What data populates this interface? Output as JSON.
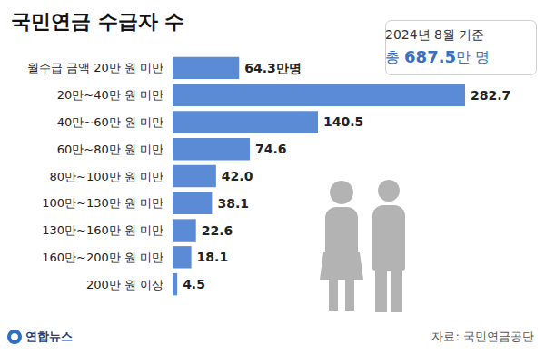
{
  "chart_data": {
    "type": "bar",
    "title": "국민연금 수급자 수",
    "subtitle": "2024년 8월 기준",
    "annotations": [
      "총 687.5만 명"
    ],
    "source": "자료: 국민연금공단",
    "credit": "연합뉴스",
    "orientation": "horizontal",
    "categories": [
      "월수급 금액 20만 원 미만",
      "20만~40만 원 미만",
      "40만~60만 원 미만",
      "60만~80만 원 미만",
      "80만~100만 원 미만",
      "100만~130만 원 미만",
      "130만~160만 원 미만",
      "160만~200만 원 미만",
      "200만 원 이상"
    ],
    "values": [
      64.3,
      282.7,
      140.5,
      74.6,
      42.0,
      38.1,
      22.6,
      18.1,
      4.5
    ],
    "value_labels": [
      "64.3만명",
      "282.7",
      "140.5",
      "74.6",
      "42.0",
      "38.1",
      "22.6",
      "18.1",
      "4.5"
    ],
    "color": "#5b8bd5",
    "data_labels": true,
    "tick_labels": false,
    "grid": false
  }
}
